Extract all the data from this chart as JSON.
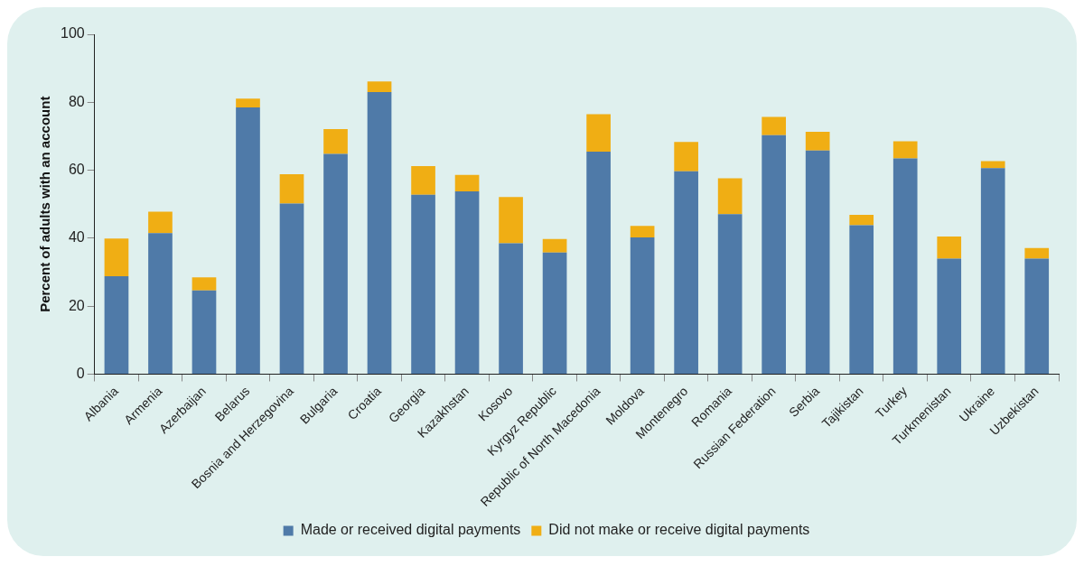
{
  "chart_data": {
    "type": "bar",
    "ylabel": "Percent of adults with an account",
    "categories": [
      "Albania",
      "Armenia",
      "Azerbaijan",
      "Belarus",
      "Bosnia and Herzegovina",
      "Bulgaria",
      "Croatia",
      "Georgia",
      "Kazakhstan",
      "Kosovo",
      "Kyrgyz Republic",
      "Republic of North Macedonia",
      "Moldova",
      "Montenegro",
      "Romania",
      "Russian Federation",
      "Serbia",
      "Tajikistan",
      "Turkey",
      "Turkmenistan",
      "Ukraine",
      "Uzbekistan"
    ],
    "series": [
      {
        "name": "Made or received digital payments",
        "color": "#4f7aa8",
        "values": [
          28.8,
          41.5,
          24.6,
          78.5,
          50.2,
          64.8,
          83.0,
          52.8,
          53.8,
          38.5,
          35.8,
          65.5,
          40.2,
          59.7,
          47.1,
          70.3,
          65.8,
          43.8,
          63.5,
          34.0,
          60.6,
          34.0
        ]
      },
      {
        "name": "Did not make or receive digital payments",
        "color": "#f0ae14",
        "values": [
          11.1,
          6.3,
          3.9,
          2.6,
          8.6,
          7.3,
          3.1,
          8.4,
          4.8,
          13.6,
          4.0,
          11.0,
          3.4,
          8.6,
          10.5,
          5.4,
          5.5,
          3.1,
          5.0,
          6.5,
          2.1,
          3.1
        ]
      }
    ],
    "stacked": true,
    "ylim": [
      0,
      100
    ],
    "yticks": [
      0,
      20,
      40,
      60,
      80,
      100
    ],
    "grid": false,
    "legend": "bottom"
  }
}
